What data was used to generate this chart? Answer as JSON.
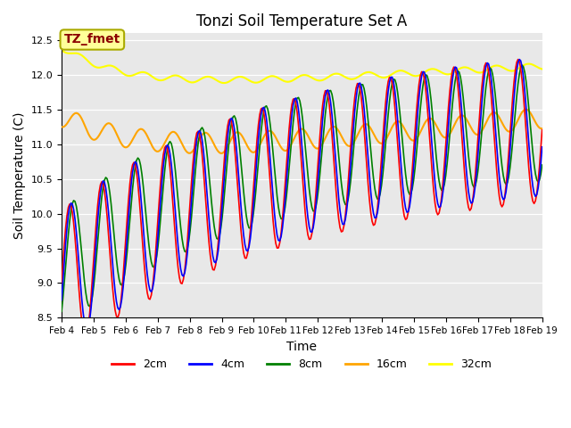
{
  "title": "Tonzi Soil Temperature Set A",
  "xlabel": "Time",
  "ylabel": "Soil Temperature (C)",
  "ylim": [
    8.5,
    12.6
  ],
  "annotation_text": "TZ_fmet",
  "annotation_color": "#8B0000",
  "annotation_bg": "#FFFF99",
  "legend_labels": [
    "2cm",
    "4cm",
    "8cm",
    "16cm",
    "32cm"
  ],
  "line_colors": [
    "red",
    "blue",
    "green",
    "orange",
    "yellow"
  ],
  "background_color": "#E8E8E8",
  "yticks": [
    8.5,
    9.0,
    9.5,
    10.0,
    10.5,
    11.0,
    11.5,
    12.0,
    12.5
  ],
  "xtick_labels": [
    "Feb 4",
    "Feb 5",
    "Feb 6",
    "Feb 7",
    "Feb 8",
    "Feb 9",
    "Feb 10",
    "Feb 11",
    "Feb 12",
    "Feb 13",
    "Feb 14",
    "Feb 15",
    "Feb 16",
    "Feb 17",
    "Feb 18",
    "Feb 19"
  ]
}
